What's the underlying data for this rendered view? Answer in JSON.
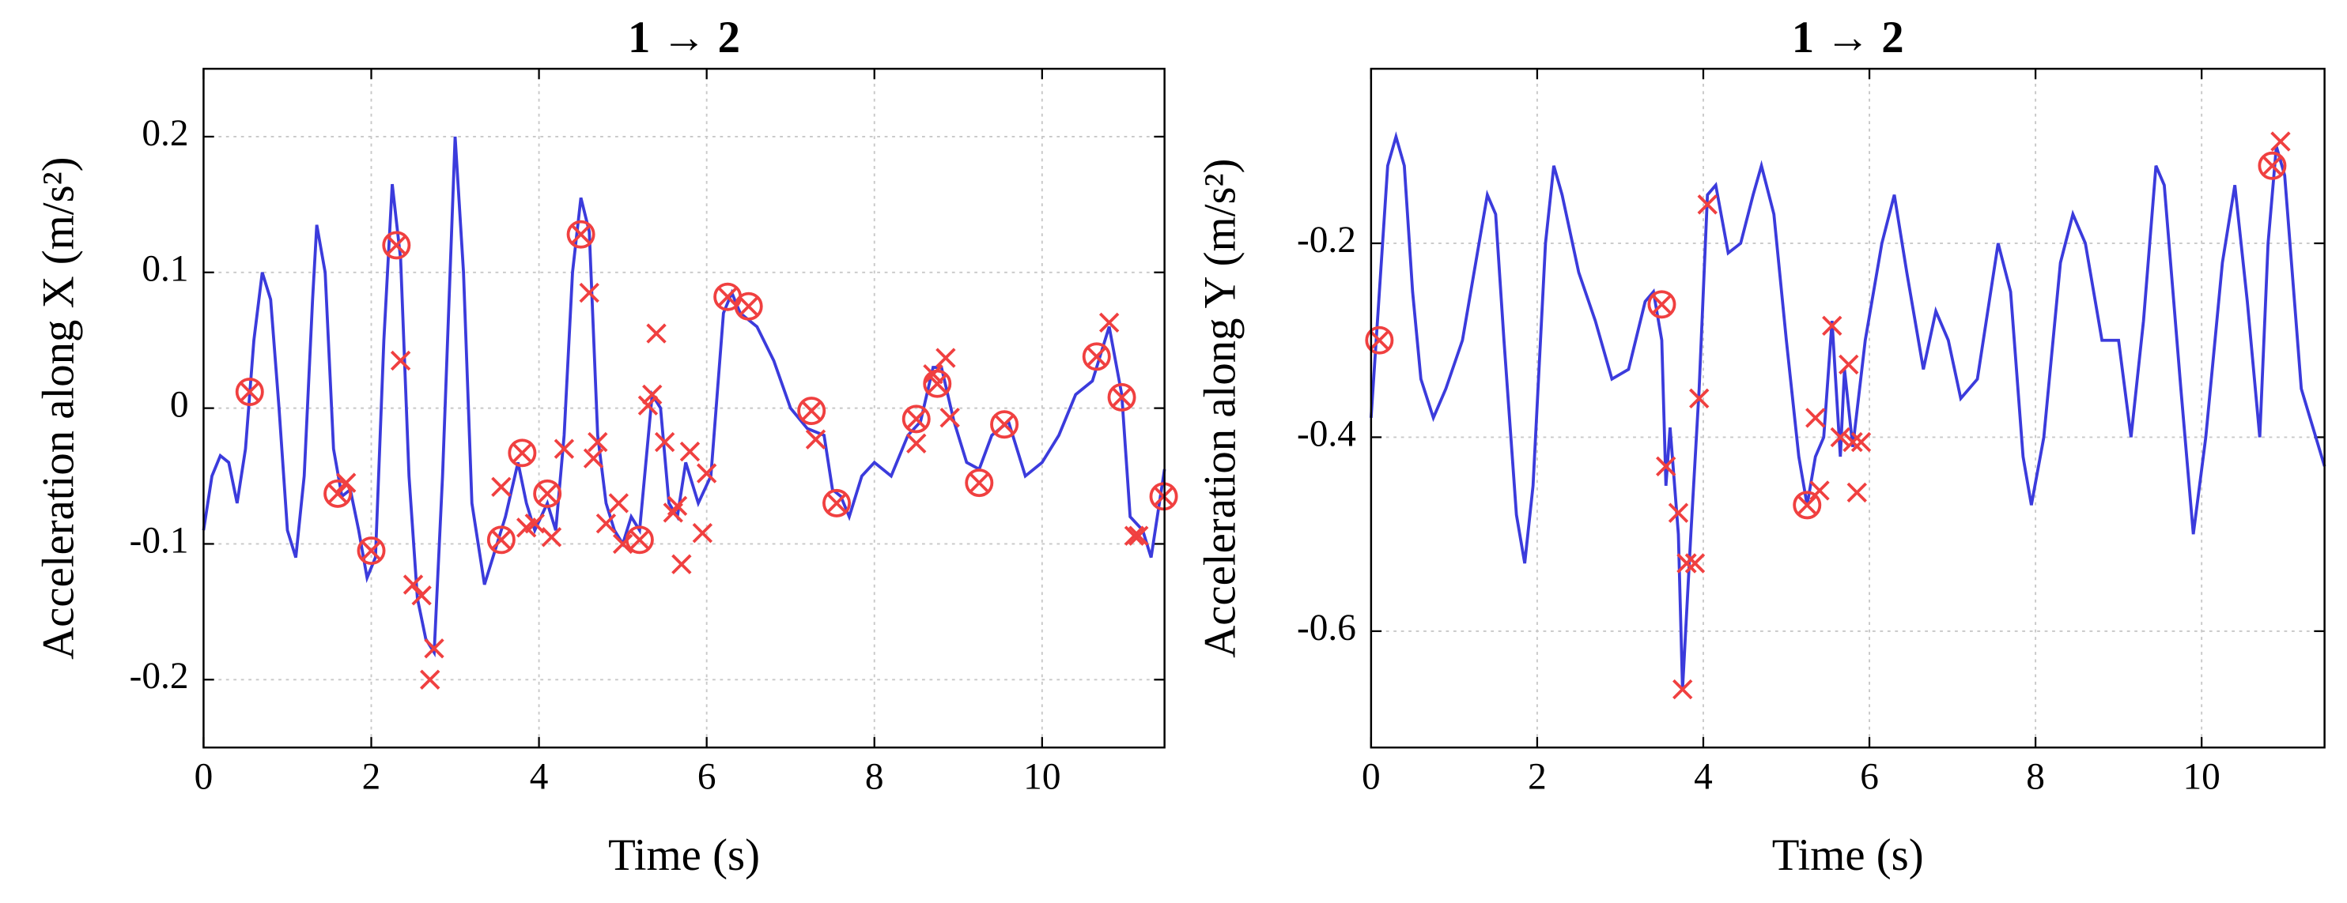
{
  "chart_data": [
    {
      "type": "line",
      "title": "1 → 2",
      "xlabel": "Time (s)",
      "ylabel": "Acceleration along X (m/s²)",
      "xlim": [
        0,
        11.46
      ],
      "ylim": [
        -0.25,
        0.25
      ],
      "xticks": [
        0,
        2,
        4,
        6,
        8,
        10
      ],
      "yticks": [
        -0.2,
        -0.1,
        0,
        0.1,
        0.2
      ],
      "grid": true,
      "series": [
        {
          "style": "line",
          "color": "#3b3bdc",
          "x": [
            0,
            0.1,
            0.2,
            0.3,
            0.4,
            0.5,
            0.6,
            0.7,
            0.8,
            0.9,
            1.0,
            1.1,
            1.2,
            1.3,
            1.35,
            1.45,
            1.55,
            1.65,
            1.75,
            1.85,
            1.95,
            2.05,
            2.15,
            2.25,
            2.35,
            2.45,
            2.55,
            2.65,
            2.75,
            2.85,
            3.0,
            3.1,
            3.2,
            3.35,
            3.45,
            3.6,
            3.75,
            3.85,
            3.95,
            4.1,
            4.2,
            4.3,
            4.4,
            4.5,
            4.6,
            4.7,
            4.8,
            4.9,
            5.0,
            5.1,
            5.2,
            5.35,
            5.45,
            5.55,
            5.65,
            5.75,
            5.9,
            6.05,
            6.2,
            6.3,
            6.4,
            6.6,
            6.8,
            7.0,
            7.2,
            7.4,
            7.5,
            7.6,
            7.7,
            7.85,
            8.0,
            8.2,
            8.4,
            8.55,
            8.7,
            8.8,
            8.95,
            9.1,
            9.25,
            9.4,
            9.6,
            9.8,
            10.0,
            10.2,
            10.4,
            10.6,
            10.8,
            10.95,
            11.05,
            11.2,
            11.3,
            11.46
          ],
          "values": [
            -0.09,
            -0.05,
            -0.035,
            -0.04,
            -0.07,
            -0.03,
            0.05,
            0.1,
            0.08,
            0.0,
            -0.09,
            -0.11,
            -0.05,
            0.08,
            0.135,
            0.1,
            -0.03,
            -0.065,
            -0.06,
            -0.09,
            -0.125,
            -0.11,
            0.05,
            0.165,
            0.11,
            -0.05,
            -0.14,
            -0.17,
            -0.18,
            -0.05,
            0.2,
            0.1,
            -0.07,
            -0.13,
            -0.11,
            -0.08,
            -0.04,
            -0.07,
            -0.09,
            -0.07,
            -0.09,
            -0.02,
            0.1,
            0.155,
            0.13,
            -0.02,
            -0.07,
            -0.09,
            -0.1,
            -0.08,
            -0.09,
            0.01,
            0.0,
            -0.07,
            -0.08,
            -0.04,
            -0.07,
            -0.05,
            0.07,
            0.085,
            0.07,
            0.06,
            0.035,
            0.0,
            -0.015,
            -0.02,
            -0.06,
            -0.065,
            -0.08,
            -0.05,
            -0.04,
            -0.05,
            -0.02,
            -0.01,
            0.03,
            0.03,
            -0.01,
            -0.04,
            -0.045,
            -0.02,
            -0.01,
            -0.05,
            -0.04,
            -0.02,
            0.01,
            0.02,
            0.06,
            0.01,
            -0.08,
            -0.09,
            -0.11,
            -0.045
          ]
        },
        {
          "style": "circle-x",
          "color": "#f04040",
          "x": [
            0.55,
            1.6,
            2.0,
            2.3,
            3.55,
            3.8,
            4.1,
            4.5,
            5.2,
            6.25,
            6.5,
            7.25,
            7.55,
            8.5,
            8.75,
            9.25,
            9.55,
            10.65,
            10.95,
            11.45
          ],
          "values": [
            0.012,
            -0.063,
            -0.105,
            0.12,
            -0.097,
            -0.033,
            -0.063,
            0.128,
            -0.097,
            0.082,
            0.075,
            -0.002,
            -0.07,
            -0.008,
            0.018,
            -0.055,
            -0.012,
            0.038,
            0.008,
            -0.065
          ]
        },
        {
          "style": "x",
          "color": "#f04040",
          "x": [
            1.7,
            2.35,
            2.5,
            2.6,
            2.7,
            2.75,
            3.55,
            3.85,
            3.95,
            4.15,
            4.3,
            4.6,
            4.65,
            4.7,
            4.8,
            4.95,
            5.0,
            5.3,
            5.35,
            5.4,
            5.5,
            5.6,
            5.65,
            5.7,
            5.8,
            5.95,
            6.0,
            7.3,
            8.5,
            8.7,
            8.85,
            8.9,
            10.8,
            11.1,
            11.15
          ],
          "values": [
            -0.055,
            0.035,
            -0.13,
            -0.138,
            -0.2,
            -0.177,
            -0.058,
            -0.088,
            -0.085,
            -0.095,
            -0.03,
            0.085,
            -0.037,
            -0.025,
            -0.085,
            -0.07,
            -0.1,
            0.002,
            0.01,
            0.055,
            -0.025,
            -0.077,
            -0.072,
            -0.115,
            -0.032,
            -0.092,
            -0.048,
            -0.023,
            -0.026,
            0.025,
            0.037,
            -0.007,
            0.063,
            -0.094,
            -0.094
          ]
        }
      ]
    },
    {
      "type": "line",
      "title": "1 → 2",
      "xlabel": "Time (s)",
      "ylabel": "Acceleration along Y (m/s²)",
      "xlim": [
        0,
        11.48
      ],
      "ylim": [
        -0.72,
        -0.02
      ],
      "xticks": [
        0,
        2,
        4,
        6,
        8,
        10
      ],
      "yticks": [
        -0.6,
        -0.4,
        -0.2
      ],
      "grid": true,
      "series": [
        {
          "style": "line",
          "color": "#3b3bdc",
          "x": [
            0,
            0.1,
            0.2,
            0.3,
            0.4,
            0.5,
            0.6,
            0.75,
            0.9,
            1.1,
            1.3,
            1.4,
            1.5,
            1.6,
            1.75,
            1.85,
            1.95,
            2.1,
            2.2,
            2.3,
            2.5,
            2.7,
            2.9,
            3.1,
            3.3,
            3.4,
            3.5,
            3.55,
            3.6,
            3.7,
            3.75,
            3.85,
            3.95,
            4.05,
            4.15,
            4.3,
            4.45,
            4.6,
            4.7,
            4.85,
            5.0,
            5.15,
            5.25,
            5.35,
            5.45,
            5.55,
            5.65,
            5.7,
            5.8,
            5.95,
            6.15,
            6.3,
            6.45,
            6.65,
            6.8,
            6.95,
            7.1,
            7.3,
            7.55,
            7.7,
            7.85,
            7.95,
            8.1,
            8.3,
            8.45,
            8.6,
            8.8,
            9.0,
            9.15,
            9.3,
            9.45,
            9.55,
            9.75,
            9.9,
            10.05,
            10.25,
            10.4,
            10.55,
            10.7,
            10.8,
            10.9,
            11.0,
            11.2,
            11.48
          ],
          "values": [
            -0.38,
            -0.25,
            -0.12,
            -0.09,
            -0.12,
            -0.25,
            -0.34,
            -0.38,
            -0.35,
            -0.3,
            -0.2,
            -0.15,
            -0.17,
            -0.3,
            -0.48,
            -0.53,
            -0.45,
            -0.2,
            -0.12,
            -0.15,
            -0.23,
            -0.28,
            -0.34,
            -0.33,
            -0.26,
            -0.25,
            -0.3,
            -0.45,
            -0.39,
            -0.5,
            -0.66,
            -0.5,
            -0.35,
            -0.15,
            -0.14,
            -0.21,
            -0.2,
            -0.15,
            -0.12,
            -0.17,
            -0.3,
            -0.42,
            -0.47,
            -0.42,
            -0.4,
            -0.28,
            -0.42,
            -0.33,
            -0.41,
            -0.3,
            -0.2,
            -0.15,
            -0.23,
            -0.33,
            -0.27,
            -0.3,
            -0.36,
            -0.34,
            -0.2,
            -0.25,
            -0.42,
            -0.47,
            -0.4,
            -0.22,
            -0.17,
            -0.2,
            -0.3,
            -0.3,
            -0.4,
            -0.28,
            -0.12,
            -0.14,
            -0.35,
            -0.5,
            -0.4,
            -0.22,
            -0.14,
            -0.26,
            -0.4,
            -0.2,
            -0.1,
            -0.13,
            -0.35,
            -0.43
          ]
        },
        {
          "style": "circle-x",
          "color": "#f04040",
          "x": [
            0.1,
            3.5,
            5.25,
            10.85
          ],
          "values": [
            -0.3,
            -0.263,
            -0.47,
            -0.12
          ]
        },
        {
          "style": "x",
          "color": "#f04040",
          "x": [
            3.55,
            3.7,
            3.8,
            3.9,
            3.75,
            3.95,
            4.05,
            5.35,
            5.4,
            5.55,
            5.65,
            5.75,
            5.8,
            5.85,
            5.9,
            10.95
          ],
          "values": [
            -0.43,
            -0.478,
            -0.53,
            -0.53,
            -0.66,
            -0.36,
            -0.16,
            -0.38,
            -0.455,
            -0.285,
            -0.4,
            -0.325,
            -0.405,
            -0.457,
            -0.405,
            -0.095
          ]
        }
      ]
    }
  ]
}
